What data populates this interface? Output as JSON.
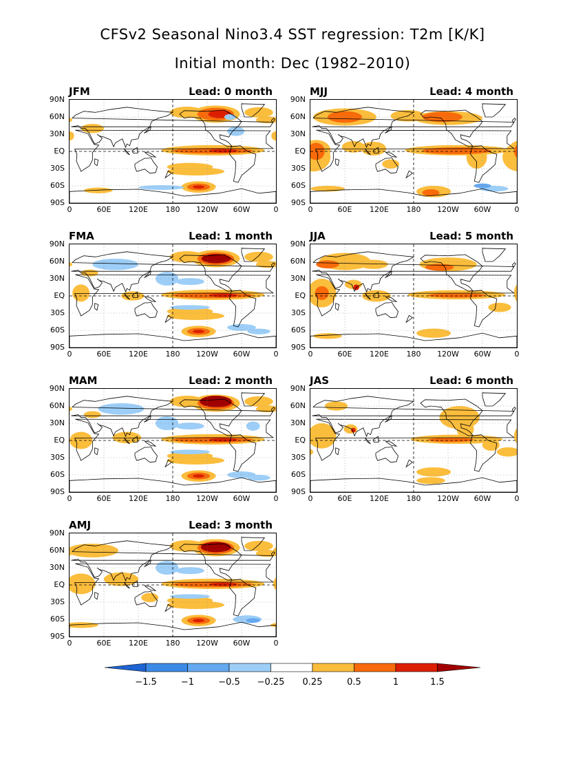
{
  "title": {
    "line1": "CFSv2 Seasonal Nino3.4 SST regression: T2m [K/K]",
    "line2": "Initial month: Dec (1982–2010)"
  },
  "lat_labels": [
    "90N",
    "60N",
    "30N",
    "EQ",
    "30S",
    "60S",
    "90S"
  ],
  "lon_labels": [
    "0",
    "60E",
    "120E",
    "180",
    "120W",
    "60W",
    "0"
  ],
  "panels": [
    {
      "season": "JFM",
      "lead": "Lead: 0 month",
      "lead_months": 0
    },
    {
      "season": "MJJ",
      "lead": "Lead: 4 month",
      "lead_months": 4
    },
    {
      "season": "FMA",
      "lead": "Lead: 1 month",
      "lead_months": 1
    },
    {
      "season": "JJA",
      "lead": "Lead: 5 month",
      "lead_months": 5
    },
    {
      "season": "MAM",
      "lead": "Lead: 2 month",
      "lead_months": 2
    },
    {
      "season": "JAS",
      "lead": "Lead: 6 month",
      "lead_months": 6
    },
    {
      "season": "AMJ",
      "lead": "Lead: 3 month",
      "lead_months": 3
    }
  ],
  "colorbar": {
    "labels": [
      "−1.5",
      "−1",
      "−0.5",
      "−0.25",
      "0.25",
      "0.5",
      "1",
      "1.5"
    ],
    "colors": [
      "#1e64d2",
      "#3c8ae6",
      "#64a8f0",
      "#9ccef8",
      "#ffffff",
      "#fbbd3c",
      "#f86a0a",
      "#dc1e00",
      "#a00000"
    ]
  }
}
